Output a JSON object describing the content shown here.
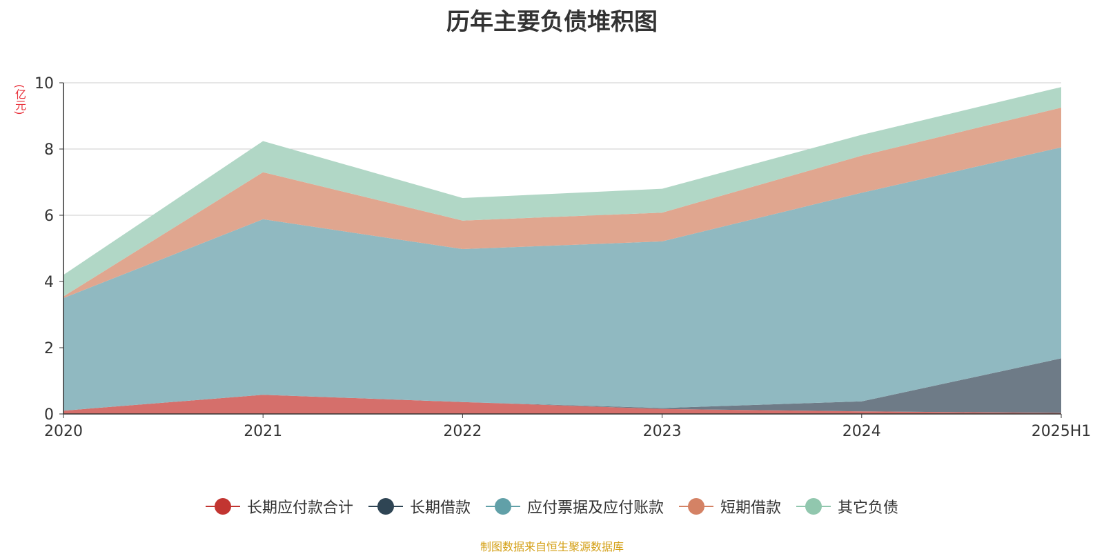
{
  "source_note": "制图数据来自恒生聚源数据库",
  "chart_data": {
    "type": "area",
    "stacked": true,
    "title": "历年主要负债堆积图",
    "unit_label": "(亿元)",
    "categories": [
      "2020",
      "2021",
      "2022",
      "2023",
      "2024",
      "2025H1"
    ],
    "ylim": [
      0,
      10
    ],
    "yticks": [
      0,
      2,
      4,
      6,
      8,
      10
    ],
    "grid": true,
    "legend_position": "bottom",
    "series": [
      {
        "name": "长期应付款合计",
        "color": "#c23531",
        "fill": "#d56f6b",
        "values": [
          0.1,
          0.58,
          0.36,
          0.15,
          0.08,
          0.03
        ]
      },
      {
        "name": "长期借款",
        "color": "#2f4554",
        "fill": "#6e7b87",
        "values": [
          0,
          0,
          0,
          0.03,
          0.3,
          1.65
        ]
      },
      {
        "name": "应付票据及应付账款",
        "color": "#61a0a8",
        "fill": "#90b9c1",
        "values": [
          3.4,
          5.3,
          4.62,
          5.03,
          6.3,
          6.37
        ]
      },
      {
        "name": "短期借款",
        "color": "#d48265",
        "fill": "#e0a68f",
        "values": [
          0.05,
          1.42,
          0.86,
          0.87,
          1.12,
          1.2
        ]
      },
      {
        "name": "其它负债",
        "color": "#91c7ae",
        "fill": "#b1d7c6",
        "values": [
          0.65,
          0.94,
          0.68,
          0.72,
          0.63,
          0.62
        ]
      }
    ]
  }
}
